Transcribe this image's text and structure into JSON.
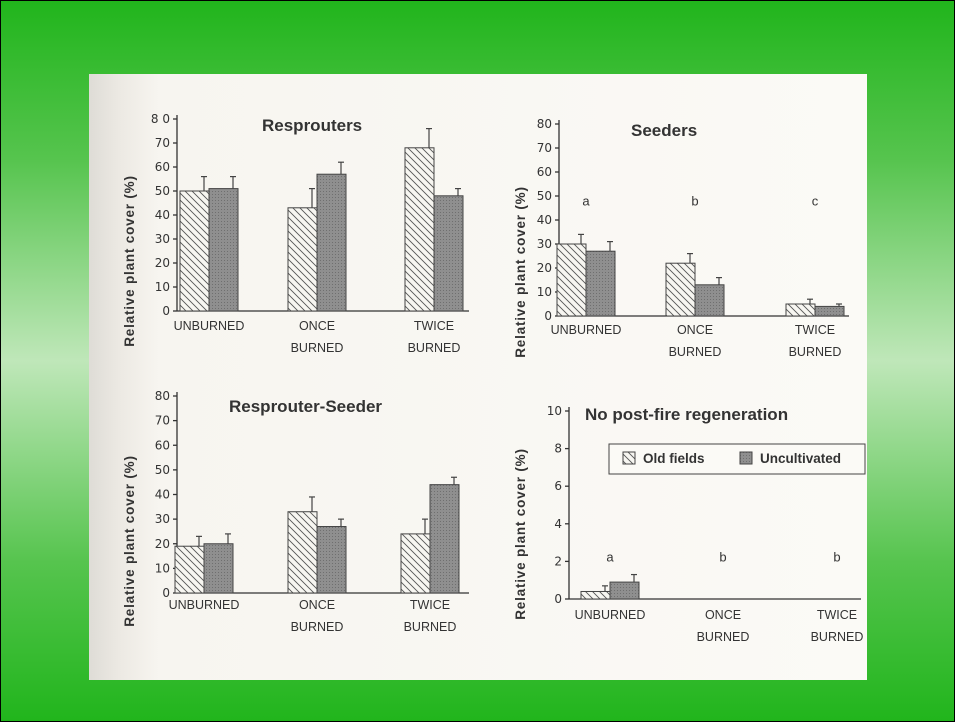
{
  "colors": {
    "frame_green": "#21b51c",
    "paper": "#f7f5f0",
    "ink": "#333333",
    "uncultivated_fill": "#8f8f8f"
  },
  "legend": {
    "items": [
      "Old fields",
      "Uncultivated"
    ]
  },
  "chart_data": [
    {
      "type": "bar",
      "title": "Resprouters",
      "ylabel": "Relative plant cover (%)",
      "categories": [
        [
          "UNBURNED"
        ],
        [
          "ONCE",
          "BURNED"
        ],
        [
          "TWICE",
          "BURNED"
        ]
      ],
      "ylim": [
        0,
        80
      ],
      "yticks": [
        0,
        10,
        20,
        30,
        40,
        50,
        60,
        70,
        80
      ],
      "ytick_labels": [
        "0",
        "10",
        "20",
        "30",
        "40",
        "50",
        "60",
        "70",
        "8 0"
      ],
      "series": [
        {
          "name": "Old fields",
          "values": [
            50,
            43,
            68
          ],
          "errors": [
            6,
            8,
            8
          ]
        },
        {
          "name": "Uncultivated",
          "values": [
            51,
            57,
            48
          ],
          "errors": [
            5,
            5,
            3
          ]
        }
      ],
      "annotations": []
    },
    {
      "type": "bar",
      "title": "Seeders",
      "ylabel": "Relative plant cover (%)",
      "categories": [
        [
          "UNBURNED"
        ],
        [
          "ONCE",
          "BURNED"
        ],
        [
          "TWICE",
          "BURNED"
        ]
      ],
      "ylim": [
        0,
        80
      ],
      "yticks": [
        0,
        10,
        20,
        30,
        40,
        50,
        60,
        70,
        80
      ],
      "ytick_labels": [
        "0",
        "10",
        "20",
        "30",
        "40",
        "50",
        "60",
        "70",
        "80"
      ],
      "series": [
        {
          "name": "Old fields",
          "values": [
            30,
            22,
            5
          ],
          "errors": [
            4,
            4,
            2
          ]
        },
        {
          "name": "Uncultivated",
          "values": [
            27,
            13,
            4
          ],
          "errors": [
            4,
            3,
            1
          ]
        }
      ],
      "annotations": [
        "a",
        "b",
        "c"
      ],
      "annotation_y": 46
    },
    {
      "type": "bar",
      "title": "Resprouter-Seeder",
      "ylabel": "Relative plant cover (%)",
      "categories": [
        [
          "UNBURNED"
        ],
        [
          "ONCE",
          "BURNED"
        ],
        [
          "TWICE",
          "BURNED"
        ]
      ],
      "ylim": [
        0,
        80
      ],
      "yticks": [
        0,
        10,
        20,
        30,
        40,
        50,
        60,
        70,
        80
      ],
      "ytick_labels": [
        "0",
        "10",
        "20",
        "30",
        "40",
        "50",
        "60",
        "70",
        "80"
      ],
      "series": [
        {
          "name": "Old fields",
          "values": [
            19,
            33,
            24
          ],
          "errors": [
            4,
            6,
            6
          ]
        },
        {
          "name": "Uncultivated",
          "values": [
            20,
            27,
            44
          ],
          "errors": [
            4,
            3,
            3
          ]
        }
      ],
      "annotations": []
    },
    {
      "type": "bar",
      "title": "No post-fire regeneration",
      "ylabel": "Relative plant cover (%)",
      "categories": [
        [
          "UNBURNED"
        ],
        [
          "ONCE",
          "BURNED"
        ],
        [
          "TWICE",
          "BURNED"
        ]
      ],
      "ylim": [
        0,
        10
      ],
      "yticks": [
        0,
        2,
        4,
        6,
        8,
        10
      ],
      "ytick_labels": [
        "0",
        "2",
        "4",
        "6",
        "8",
        "10"
      ],
      "series": [
        {
          "name": "Old fields",
          "values": [
            0.4,
            0,
            0
          ],
          "errors": [
            0.3,
            0,
            0
          ]
        },
        {
          "name": "Uncultivated",
          "values": [
            0.9,
            0,
            0
          ],
          "errors": [
            0.4,
            0,
            0
          ]
        }
      ],
      "annotations": [
        "a",
        "b",
        "b"
      ],
      "annotation_y": 2
    }
  ]
}
